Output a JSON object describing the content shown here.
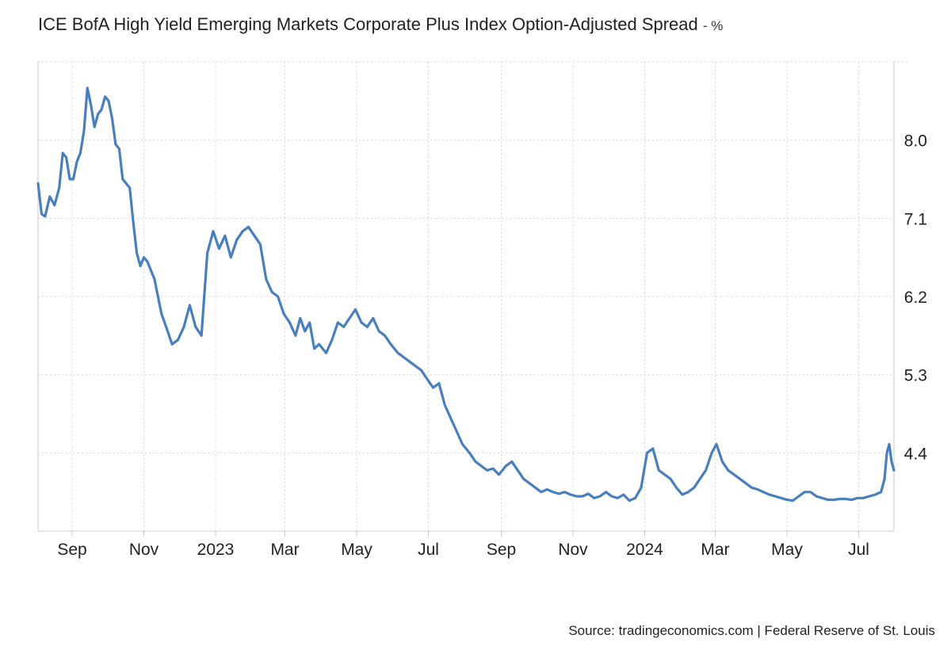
{
  "title": "ICE BofA High Yield Emerging Markets Corporate Plus Index Option-Adjusted Spread",
  "unit": "- %",
  "source": "Source: tradingeconomics.com | Federal Reserve of St. Louis",
  "colors": {
    "line": "#4a7fbd",
    "grid": "#d9d9d9",
    "axis": "#cccccc"
  },
  "chart_data": {
    "type": "line",
    "title": "ICE BofA High Yield Emerging Markets Corporate Plus Index Option-Adjusted Spread",
    "ylabel": "%",
    "y_ticks": [
      "8.0",
      "7.1",
      "6.2",
      "5.3",
      "4.4"
    ],
    "y_tick_values": [
      8.0,
      7.1,
      6.2,
      5.3,
      4.4
    ],
    "ylim": [
      3.5,
      8.9
    ],
    "x_ticks": [
      "Sep",
      "Nov",
      "2023",
      "Mar",
      "May",
      "Jul",
      "Sep",
      "Nov",
      "2024",
      "Mar",
      "May",
      "Jul"
    ],
    "x_tick_dates": [
      "2022-09-01",
      "2022-11-01",
      "2023-01-01",
      "2023-03-01",
      "2023-05-01",
      "2023-07-01",
      "2023-09-01",
      "2023-11-01",
      "2024-01-01",
      "2024-03-01",
      "2024-05-01",
      "2024-07-01"
    ],
    "xlim": [
      "2022-08-03",
      "2024-07-31"
    ],
    "grid": true,
    "series": [
      {
        "x": [
          "2022-08-03",
          "2022-08-06",
          "2022-08-09",
          "2022-08-13",
          "2022-08-17",
          "2022-08-21",
          "2022-08-24",
          "2022-08-27",
          "2022-08-30",
          "2022-09-02",
          "2022-09-05",
          "2022-09-08",
          "2022-09-11",
          "2022-09-14",
          "2022-09-17",
          "2022-09-20",
          "2022-09-23",
          "2022-09-26",
          "2022-09-29",
          "2022-10-02",
          "2022-10-05",
          "2022-10-08",
          "2022-10-11",
          "2022-10-14",
          "2022-10-17",
          "2022-10-20",
          "2022-10-23",
          "2022-10-26",
          "2022-10-29",
          "2022-11-01",
          "2022-11-04",
          "2022-11-07",
          "2022-11-10",
          "2022-11-13",
          "2022-11-16",
          "2022-11-20",
          "2022-11-25",
          "2022-11-30",
          "2022-12-05",
          "2022-12-10",
          "2022-12-15",
          "2022-12-20",
          "2022-12-25",
          "2022-12-30",
          "2023-01-04",
          "2023-01-09",
          "2023-01-14",
          "2023-01-19",
          "2023-01-24",
          "2023-01-29",
          "2023-02-03",
          "2023-02-08",
          "2023-02-13",
          "2023-02-18",
          "2023-02-23",
          "2023-02-28",
          "2023-03-05",
          "2023-03-10",
          "2023-03-14",
          "2023-03-18",
          "2023-03-22",
          "2023-03-26",
          "2023-03-30",
          "2023-04-05",
          "2023-04-10",
          "2023-04-15",
          "2023-04-20",
          "2023-04-25",
          "2023-04-30",
          "2023-05-05",
          "2023-05-10",
          "2023-05-15",
          "2023-05-20",
          "2023-05-25",
          "2023-05-30",
          "2023-06-05",
          "2023-06-10",
          "2023-06-15",
          "2023-06-20",
          "2023-06-25",
          "2023-06-30",
          "2023-07-05",
          "2023-07-10",
          "2023-07-15",
          "2023-07-20",
          "2023-07-25",
          "2023-07-30",
          "2023-08-05",
          "2023-08-10",
          "2023-08-15",
          "2023-08-20",
          "2023-08-25",
          "2023-08-30",
          "2023-09-05",
          "2023-09-10",
          "2023-09-15",
          "2023-09-20",
          "2023-09-25",
          "2023-09-30",
          "2023-10-05",
          "2023-10-10",
          "2023-10-15",
          "2023-10-20",
          "2023-10-25",
          "2023-10-30",
          "2023-11-04",
          "2023-11-09",
          "2023-11-14",
          "2023-11-19",
          "2023-11-24",
          "2023-11-29",
          "2023-12-04",
          "2023-12-09",
          "2023-12-14",
          "2023-12-19",
          "2023-12-24",
          "2023-12-29",
          "2024-01-03",
          "2024-01-08",
          "2024-01-13",
          "2024-01-18",
          "2024-01-23",
          "2024-01-28",
          "2024-02-02",
          "2024-02-07",
          "2024-02-12",
          "2024-02-17",
          "2024-02-22",
          "2024-02-27",
          "2024-03-02",
          "2024-03-07",
          "2024-03-12",
          "2024-03-17",
          "2024-03-22",
          "2024-03-27",
          "2024-04-01",
          "2024-04-06",
          "2024-04-11",
          "2024-04-16",
          "2024-04-21",
          "2024-04-26",
          "2024-05-01",
          "2024-05-06",
          "2024-05-11",
          "2024-05-16",
          "2024-05-21",
          "2024-05-26",
          "2024-05-31",
          "2024-06-05",
          "2024-06-10",
          "2024-06-15",
          "2024-06-20",
          "2024-06-25",
          "2024-06-30",
          "2024-07-05",
          "2024-07-10",
          "2024-07-15",
          "2024-07-20",
          "2024-07-23",
          "2024-07-25",
          "2024-07-27",
          "2024-07-29",
          "2024-07-31"
        ],
        "y": [
          7.5,
          7.15,
          7.12,
          7.35,
          7.25,
          7.45,
          7.85,
          7.8,
          7.55,
          7.55,
          7.75,
          7.85,
          8.1,
          8.6,
          8.4,
          8.15,
          8.3,
          8.35,
          8.5,
          8.45,
          8.25,
          7.95,
          7.9,
          7.55,
          7.5,
          7.45,
          7.05,
          6.7,
          6.55,
          6.65,
          6.6,
          6.5,
          6.4,
          6.2,
          6.0,
          5.85,
          5.65,
          5.7,
          5.85,
          6.1,
          5.85,
          5.75,
          6.7,
          6.95,
          6.75,
          6.9,
          6.65,
          6.85,
          6.95,
          7.0,
          6.9,
          6.8,
          6.4,
          6.25,
          6.2,
          6.0,
          5.9,
          5.75,
          5.95,
          5.8,
          5.9,
          5.6,
          5.65,
          5.55,
          5.7,
          5.9,
          5.85,
          5.95,
          6.05,
          5.9,
          5.85,
          5.95,
          5.8,
          5.75,
          5.65,
          5.55,
          5.5,
          5.45,
          5.4,
          5.35,
          5.25,
          5.15,
          5.2,
          4.95,
          4.8,
          4.65,
          4.5,
          4.4,
          4.3,
          4.25,
          4.2,
          4.22,
          4.15,
          4.25,
          4.3,
          4.2,
          4.1,
          4.05,
          4.0,
          3.95,
          3.98,
          3.95,
          3.93,
          3.95,
          3.92,
          3.9,
          3.9,
          3.93,
          3.88,
          3.9,
          3.95,
          3.9,
          3.88,
          3.92,
          3.85,
          3.88,
          4.0,
          4.4,
          4.45,
          4.2,
          4.15,
          4.1,
          4.0,
          3.92,
          3.95,
          4.0,
          4.1,
          4.2,
          4.4,
          4.5,
          4.3,
          4.2,
          4.15,
          4.1,
          4.05,
          4.0,
          3.98,
          3.95,
          3.92,
          3.9,
          3.88,
          3.86,
          3.85,
          3.9,
          3.95,
          3.95,
          3.9,
          3.88,
          3.86,
          3.86,
          3.87,
          3.87,
          3.86,
          3.88,
          3.88,
          3.9,
          3.92,
          3.95,
          4.1,
          4.4,
          4.5,
          4.3,
          4.2
        ]
      }
    ]
  }
}
